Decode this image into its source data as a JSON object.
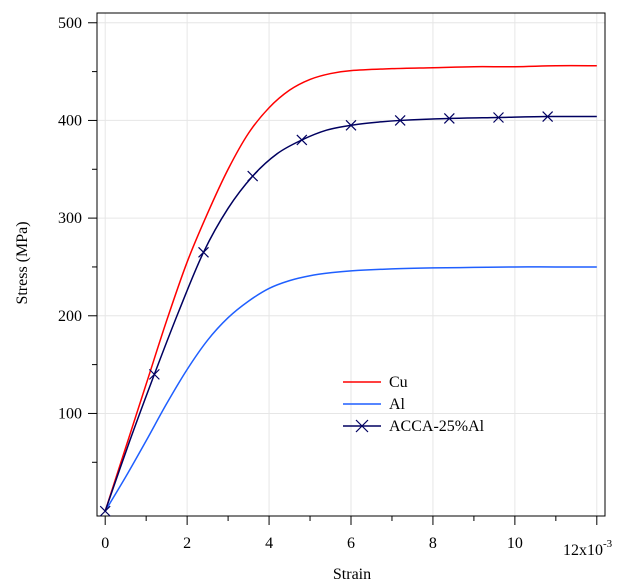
{
  "chart_data": {
    "type": "line",
    "xlabel": "Strain",
    "ylabel": "Stress (MPa)",
    "x_multiplier_label": "12x10",
    "x_multiplier_exponent": "-3",
    "xlim": [
      -0.0002,
      0.0122
    ],
    "ylim": [
      -5,
      510
    ],
    "x_ticks": [
      0,
      0.002,
      0.004,
      0.006,
      0.008,
      0.01
    ],
    "x_tick_labels": [
      "0",
      "2",
      "4",
      "6",
      "8",
      "10"
    ],
    "y_ticks": [
      100,
      200,
      300,
      400,
      500
    ],
    "y_tick_labels": [
      "100",
      "200",
      "300",
      "400",
      "500"
    ],
    "grid": true,
    "legend_position": "lower-center",
    "colors": {
      "cu": "#ff0000",
      "al": "#1f5fff",
      "acca": "#000060",
      "grid": "#e6e6e6",
      "axis": "#000000"
    },
    "series": [
      {
        "name": "Cu",
        "x": [
          0,
          0.0005,
          0.001,
          0.0015,
          0.002,
          0.0025,
          0.003,
          0.0035,
          0.004,
          0.0045,
          0.005,
          0.0055,
          0.006,
          0.007,
          0.008,
          0.009,
          0.01,
          0.011,
          0.012
        ],
        "values": [
          0,
          65,
          130,
          195,
          255,
          305,
          350,
          387,
          413,
          431,
          442,
          448,
          451,
          453,
          454,
          455,
          455,
          456,
          456
        ],
        "marker": "none"
      },
      {
        "name": "Al",
        "x": [
          0,
          0.0005,
          0.001,
          0.0015,
          0.002,
          0.0025,
          0.003,
          0.0035,
          0.004,
          0.0045,
          0.005,
          0.0055,
          0.006,
          0.007,
          0.008,
          0.009,
          0.01,
          0.011,
          0.012
        ],
        "values": [
          0,
          35,
          72,
          110,
          145,
          175,
          198,
          215,
          228,
          236,
          241,
          244,
          246,
          248,
          249,
          249.5,
          250,
          250,
          250
        ],
        "marker": "none"
      },
      {
        "name": "ACCA-25%Al",
        "x": [
          0,
          0.0006,
          0.0012,
          0.0018,
          0.0024,
          0.003,
          0.0036,
          0.0042,
          0.0048,
          0.0054,
          0.006,
          0.0066,
          0.0072,
          0.0084,
          0.0096,
          0.0108,
          0.012
        ],
        "values": [
          0,
          72,
          140,
          205,
          265,
          310,
          343,
          366,
          380,
          390,
          395,
          398,
          400,
          402,
          403,
          404,
          404
        ],
        "markers_x": [
          0,
          0.0012,
          0.0024,
          0.0036,
          0.0048,
          0.006,
          0.0072,
          0.0084,
          0.0096,
          0.0108
        ],
        "markers_values": [
          0,
          140,
          265,
          343,
          380,
          395,
          400,
          402,
          403,
          404
        ],
        "marker": "x"
      }
    ]
  }
}
